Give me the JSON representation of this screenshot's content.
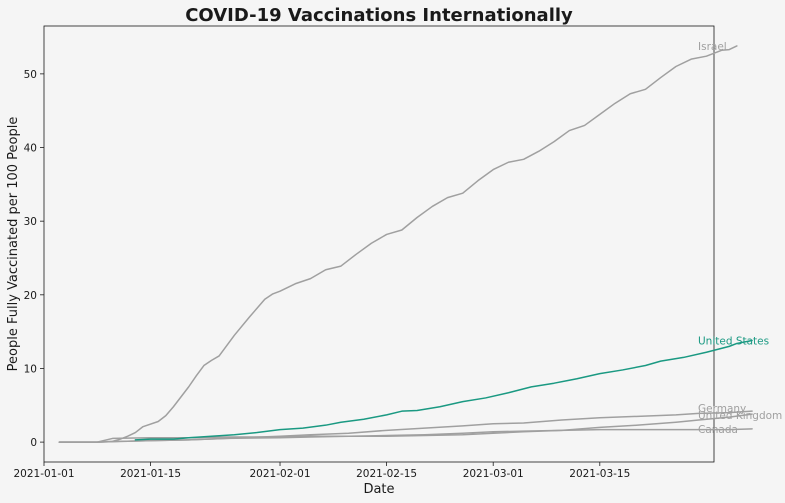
{
  "chart_data": {
    "type": "line",
    "title": "COVID-19 Vaccinations Internationally",
    "xlabel": "Date",
    "ylabel": "People Fully Vaccinated per 100 People",
    "x_axis": {
      "min": "2021-01-01",
      "max": "2021-03-30",
      "ticks": [
        "2021-01-01",
        "2021-01-15",
        "2021-02-01",
        "2021-02-15",
        "2021-03-01",
        "2021-03-15"
      ]
    },
    "y_axis": {
      "min": -2.7,
      "max": 56.5,
      "ticks": [
        0,
        10,
        20,
        30,
        40,
        50
      ]
    },
    "grid": false,
    "highlight_color": "#1a9982",
    "muted_color": "#a0a0a0",
    "series": [
      {
        "name": "Israel",
        "highlight": false,
        "points": [
          [
            "2021-01-03",
            0
          ],
          [
            "2021-01-05",
            0
          ],
          [
            "2021-01-07",
            0
          ],
          [
            "2021-01-08",
            0
          ],
          [
            "2021-01-10",
            0.1
          ],
          [
            "2021-01-11",
            0.4
          ],
          [
            "2021-01-12",
            0.8
          ],
          [
            "2021-01-13",
            1.3
          ],
          [
            "2021-01-14",
            2.1
          ],
          [
            "2021-01-16",
            2.8
          ],
          [
            "2021-01-17",
            3.6
          ],
          [
            "2021-01-18",
            4.8
          ],
          [
            "2021-01-20",
            7.5
          ],
          [
            "2021-01-21",
            9.0
          ],
          [
            "2021-01-22",
            10.4
          ],
          [
            "2021-01-23",
            11.1
          ],
          [
            "2021-01-24",
            11.7
          ],
          [
            "2021-01-26",
            14.5
          ],
          [
            "2021-01-28",
            17.0
          ],
          [
            "2021-01-30",
            19.4
          ],
          [
            "2021-01-31",
            20.1
          ],
          [
            "2021-02-01",
            20.5
          ],
          [
            "2021-02-03",
            21.5
          ],
          [
            "2021-02-05",
            22.2
          ],
          [
            "2021-02-07",
            23.4
          ],
          [
            "2021-02-09",
            23.9
          ],
          [
            "2021-02-11",
            25.5
          ],
          [
            "2021-02-13",
            27.0
          ],
          [
            "2021-02-15",
            28.2
          ],
          [
            "2021-02-17",
            28.8
          ],
          [
            "2021-02-19",
            30.5
          ],
          [
            "2021-02-21",
            32.0
          ],
          [
            "2021-02-23",
            33.2
          ],
          [
            "2021-02-25",
            33.8
          ],
          [
            "2021-02-27",
            35.5
          ],
          [
            "2021-03-01",
            37.0
          ],
          [
            "2021-03-03",
            38.0
          ],
          [
            "2021-03-05",
            38.4
          ],
          [
            "2021-03-07",
            39.5
          ],
          [
            "2021-03-09",
            40.8
          ],
          [
            "2021-03-11",
            42.3
          ],
          [
            "2021-03-13",
            43.0
          ],
          [
            "2021-03-15",
            44.5
          ],
          [
            "2021-03-17",
            46.0
          ],
          [
            "2021-03-19",
            47.3
          ],
          [
            "2021-03-21",
            47.9
          ],
          [
            "2021-03-23",
            49.5
          ],
          [
            "2021-03-25",
            51.0
          ],
          [
            "2021-03-27",
            52.0
          ],
          [
            "2021-03-29",
            52.4
          ],
          [
            "2021-03-31",
            53.2
          ],
          [
            "2021-04-01",
            53.3
          ],
          [
            "2021-04-02",
            53.8
          ]
        ]
      },
      {
        "name": "United States",
        "highlight": true,
        "points": [
          [
            "2021-01-13",
            0.3
          ],
          [
            "2021-01-15",
            0.4
          ],
          [
            "2021-01-18",
            0.4
          ],
          [
            "2021-01-20",
            0.6
          ],
          [
            "2021-01-23",
            0.8
          ],
          [
            "2021-01-26",
            1.0
          ],
          [
            "2021-01-29",
            1.3
          ],
          [
            "2021-02-01",
            1.7
          ],
          [
            "2021-02-04",
            1.9
          ],
          [
            "2021-02-07",
            2.3
          ],
          [
            "2021-02-09",
            2.7
          ],
          [
            "2021-02-12",
            3.1
          ],
          [
            "2021-02-15",
            3.7
          ],
          [
            "2021-02-17",
            4.2
          ],
          [
            "2021-02-19",
            4.3
          ],
          [
            "2021-02-22",
            4.8
          ],
          [
            "2021-02-25",
            5.5
          ],
          [
            "2021-02-28",
            6.0
          ],
          [
            "2021-03-03",
            6.7
          ],
          [
            "2021-03-06",
            7.5
          ],
          [
            "2021-03-09",
            8.0
          ],
          [
            "2021-03-12",
            8.6
          ],
          [
            "2021-03-15",
            9.3
          ],
          [
            "2021-03-18",
            9.8
          ],
          [
            "2021-03-21",
            10.4
          ],
          [
            "2021-03-23",
            11.0
          ],
          [
            "2021-03-26",
            11.5
          ],
          [
            "2021-03-29",
            12.2
          ],
          [
            "2021-04-01",
            13.0
          ],
          [
            "2021-04-02",
            13.4
          ],
          [
            "2021-04-04",
            13.8
          ]
        ]
      },
      {
        "name": "Germany",
        "highlight": false,
        "points": [
          [
            "2021-01-03",
            0
          ],
          [
            "2021-01-08",
            0
          ],
          [
            "2021-01-11",
            0.1
          ],
          [
            "2021-01-15",
            0.2
          ],
          [
            "2021-01-20",
            0.3
          ],
          [
            "2021-01-25",
            0.5
          ],
          [
            "2021-02-01",
            0.8
          ],
          [
            "2021-02-05",
            1.0
          ],
          [
            "2021-02-10",
            1.2
          ],
          [
            "2021-02-15",
            1.6
          ],
          [
            "2021-02-20",
            1.9
          ],
          [
            "2021-02-25",
            2.2
          ],
          [
            "2021-03-01",
            2.5
          ],
          [
            "2021-03-05",
            2.6
          ],
          [
            "2021-03-10",
            3.0
          ],
          [
            "2021-03-15",
            3.3
          ],
          [
            "2021-03-20",
            3.5
          ],
          [
            "2021-03-25",
            3.7
          ],
          [
            "2021-03-28",
            3.9
          ],
          [
            "2021-04-01",
            4.0
          ],
          [
            "2021-04-04",
            4.2
          ]
        ]
      },
      {
        "name": "United Kingdom",
        "highlight": false,
        "points": [
          [
            "2021-01-03",
            0
          ],
          [
            "2021-01-08",
            0
          ],
          [
            "2021-01-11",
            0.1
          ],
          [
            "2021-01-15",
            0.2
          ],
          [
            "2021-01-20",
            0.3
          ],
          [
            "2021-01-25",
            0.5
          ],
          [
            "2021-02-01",
            0.6
          ],
          [
            "2021-02-05",
            0.7
          ],
          [
            "2021-02-10",
            0.8
          ],
          [
            "2021-02-15",
            0.8
          ],
          [
            "2021-02-20",
            0.9
          ],
          [
            "2021-02-25",
            1.0
          ],
          [
            "2021-03-01",
            1.2
          ],
          [
            "2021-03-05",
            1.4
          ],
          [
            "2021-03-10",
            1.6
          ],
          [
            "2021-03-15",
            2.0
          ],
          [
            "2021-03-20",
            2.3
          ],
          [
            "2021-03-25",
            2.7
          ],
          [
            "2021-03-28",
            3.0
          ],
          [
            "2021-04-01",
            3.4
          ],
          [
            "2021-04-04",
            3.8
          ]
        ]
      },
      {
        "name": "Canada",
        "highlight": false,
        "points": [
          [
            "2021-01-03",
            0
          ],
          [
            "2021-01-08",
            0
          ],
          [
            "2021-01-10",
            0.5
          ],
          [
            "2021-01-15",
            0.6
          ],
          [
            "2021-01-20",
            0.6
          ],
          [
            "2021-01-25",
            0.7
          ],
          [
            "2021-02-01",
            0.7
          ],
          [
            "2021-02-05",
            0.8
          ],
          [
            "2021-02-10",
            0.8
          ],
          [
            "2021-02-15",
            0.9
          ],
          [
            "2021-02-20",
            1.0
          ],
          [
            "2021-02-25",
            1.2
          ],
          [
            "2021-03-01",
            1.4
          ],
          [
            "2021-03-05",
            1.5
          ],
          [
            "2021-03-10",
            1.6
          ],
          [
            "2021-03-15",
            1.7
          ],
          [
            "2021-03-20",
            1.7
          ],
          [
            "2021-03-25",
            1.7
          ],
          [
            "2021-04-01",
            1.7
          ],
          [
            "2021-04-04",
            1.8
          ]
        ]
      }
    ]
  }
}
